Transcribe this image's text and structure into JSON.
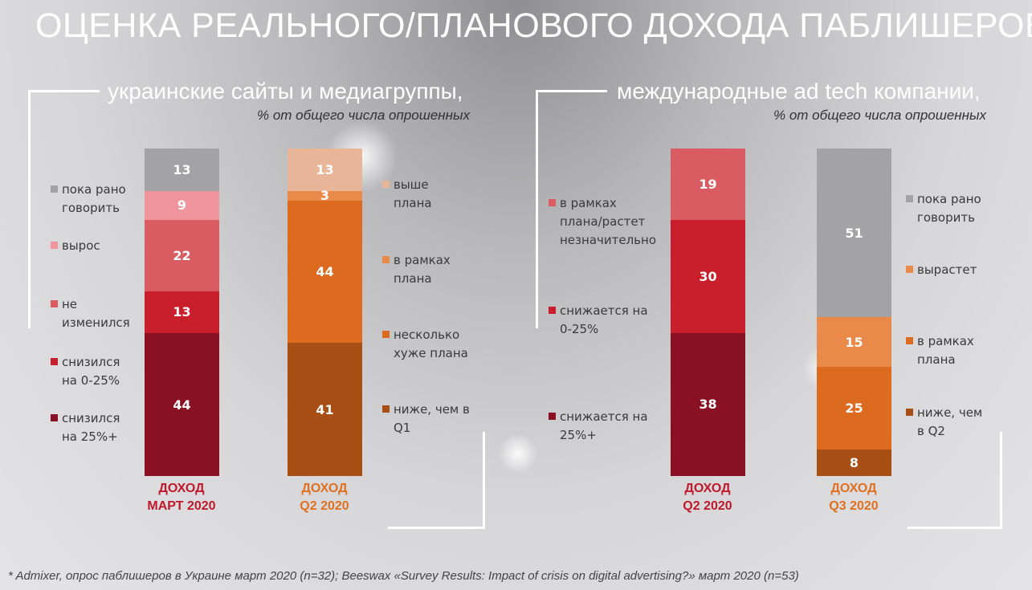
{
  "title": "ОЦЕНКА РЕАЛЬНОГО/ПЛАНОВОГО ДОХОДА ПАБЛИШЕРОВ*",
  "left_section": {
    "subtitle": "украинские сайты и медиагруппы,",
    "note": "% от общего числа опрошенных"
  },
  "right_section": {
    "subtitle": "международные ad tech компании,",
    "note": "% от общего числа опрошенных"
  },
  "footnote": "* Admixer, опрос паблишеров в Украине март 2020 (n=32); Beeswax «Survey Results: Impact of crisis on digital advertising?» март 2020 (n=53)",
  "chart_data": [
    {
      "type": "bar",
      "stacked": true,
      "category": [
        "ДОХОД",
        "МАРТ 2020"
      ],
      "label_color": "#c0182b",
      "segments": [
        {
          "name": "пока рано говорить",
          "value": 13,
          "color": "#a3a3a6"
        },
        {
          "name": "вырос",
          "value": 9,
          "color": "#f0959d"
        },
        {
          "name": "не изменился",
          "value": 22,
          "color": "#d95c62"
        },
        {
          "name": "снизился на 0-25%",
          "value": 13,
          "color": "#c91e2b"
        },
        {
          "name": "снизился на 25%+",
          "value": 44,
          "color": "#8a1024"
        }
      ]
    },
    {
      "type": "bar",
      "stacked": true,
      "category": [
        "ДОХОД",
        "Q2 2020"
      ],
      "label_color": "#e07020",
      "segments": [
        {
          "name": "выше плана",
          "value": 13,
          "color": "#e8b598"
        },
        {
          "name": "в рамках плана",
          "value": 3,
          "color": "#e98a4a"
        },
        {
          "name": "несколько хуже плана",
          "value": 44,
          "color": "#dc6a1f"
        },
        {
          "name": "ниже, чем в Q1",
          "value": 41,
          "color": "#a84f16"
        }
      ]
    },
    {
      "type": "bar",
      "stacked": true,
      "category": [
        "ДОХОД",
        "Q2 2020"
      ],
      "label_color": "#c0182b",
      "segments": [
        {
          "name": "в рамках плана/растет незначительно",
          "value": 19,
          "color": "#d95c62"
        },
        {
          "name": "снижается на 0-25%",
          "value": 30,
          "color": "#c91e2b"
        },
        {
          "name": "снижается на 25%+",
          "value": 38,
          "color": "#8a1024"
        }
      ]
    },
    {
      "type": "bar",
      "stacked": true,
      "category": [
        "ДОХОД",
        "Q3 2020"
      ],
      "label_color": "#e07020",
      "segments": [
        {
          "name": "пока рано говорить",
          "value": 51,
          "color": "#a3a3a6"
        },
        {
          "name": "вырастет",
          "value": 15,
          "color": "#e98a4a"
        },
        {
          "name": "в рамках плана",
          "value": 25,
          "color": "#dc6a1f"
        },
        {
          "name": "ниже, чем в Q2",
          "value": 8,
          "color": "#a84f16"
        }
      ]
    }
  ],
  "legends": [
    {
      "items": [
        {
          "lines": [
            "пока рано",
            "говорить"
          ],
          "color": "#a3a3a6"
        },
        {
          "lines": [
            "вырос"
          ],
          "color": "#f0959d"
        },
        {
          "lines": [
            "не",
            "изменился"
          ],
          "color": "#d95c62"
        },
        {
          "lines": [
            "снизился",
            "на 0-25%"
          ],
          "color": "#c91e2b"
        },
        {
          "lines": [
            "снизился",
            "на 25%+"
          ],
          "color": "#8a1024"
        }
      ]
    },
    {
      "items": [
        {
          "lines": [
            "выше",
            "плана"
          ],
          "color": "#e8b598"
        },
        {
          "lines": [
            "в рамках",
            "плана"
          ],
          "color": "#e98a4a"
        },
        {
          "lines": [
            "несколько",
            "хуже плана"
          ],
          "color": "#dc6a1f"
        },
        {
          "lines": [
            "ниже, чем в",
            "Q1"
          ],
          "color": "#a84f16"
        }
      ]
    },
    {
      "items": [
        {
          "lines": [
            "в рамках",
            "плана/растет",
            "незначительно"
          ],
          "color": "#d95c62"
        },
        {
          "lines": [
            "снижается на",
            "0-25%"
          ],
          "color": "#c91e2b"
        },
        {
          "lines": [
            "снижается на",
            "25%+"
          ],
          "color": "#8a1024"
        }
      ]
    },
    {
      "items": [
        {
          "lines": [
            "пока рано",
            "говорить"
          ],
          "color": "#a3a3a6"
        },
        {
          "lines": [
            "вырастет"
          ],
          "color": "#e98a4a"
        },
        {
          "lines": [
            "в рамках",
            "плана"
          ],
          "color": "#dc6a1f"
        },
        {
          "lines": [
            "ниже, чем",
            "в Q2"
          ],
          "color": "#a84f16"
        }
      ]
    }
  ]
}
